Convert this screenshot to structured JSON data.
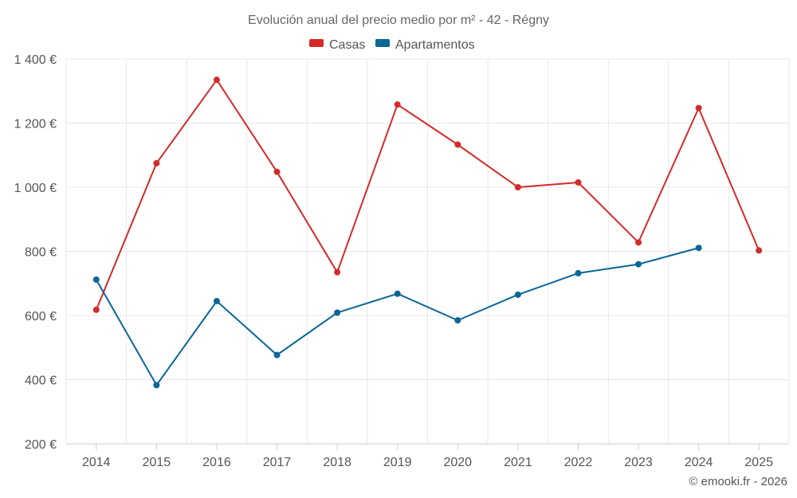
{
  "chart_data": {
    "type": "line",
    "title": "Evolución anual del precio medio por m² - 42 - Régny",
    "categories": [
      "2014",
      "2015",
      "2016",
      "2017",
      "2018",
      "2019",
      "2020",
      "2021",
      "2022",
      "2023",
      "2024",
      "2025"
    ],
    "series": [
      {
        "name": "Casas",
        "color": "#d42a2a",
        "values": [
          618,
          1075,
          1335,
          1048,
          735,
          1258,
          1133,
          1000,
          1015,
          828,
          1247,
          803
        ]
      },
      {
        "name": "Apartamentos",
        "color": "#0a6697",
        "values": [
          712,
          383,
          645,
          477,
          609,
          668,
          585,
          665,
          732,
          760,
          811,
          null
        ]
      }
    ],
    "yticks": [
      "1 400 €",
      "1 200 €",
      "1 000 €",
      "800 €",
      "600 €",
      "400 €",
      "200 €"
    ],
    "ylim": [
      200,
      1400
    ],
    "xlabel": "",
    "ylabel": "",
    "grid": true,
    "legend_position": "top-center"
  },
  "credit": "© emooki.fr - 2026"
}
